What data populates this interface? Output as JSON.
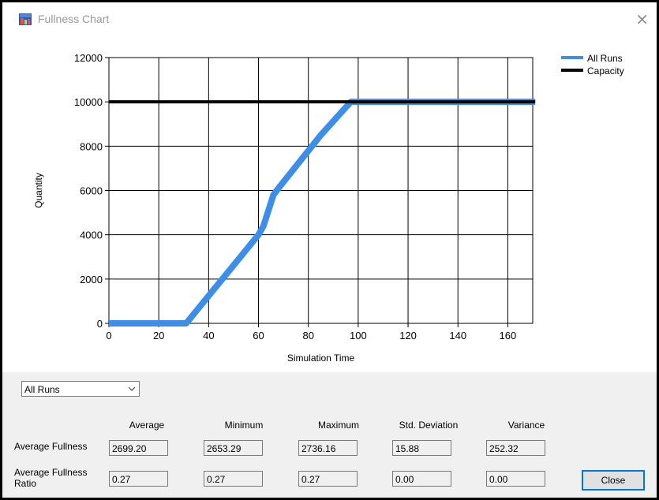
{
  "window": {
    "title": "Fullness Chart",
    "close_glyph": "×"
  },
  "chart_data": {
    "type": "line",
    "xlabel": "Simulation Time",
    "ylabel": "Quantity",
    "xlim": [
      0,
      170
    ],
    "ylim": [
      0,
      12000
    ],
    "x_ticks": [
      "0",
      "20",
      "40",
      "60",
      "80",
      "100",
      "120",
      "140",
      "160"
    ],
    "y_ticks": [
      "0",
      "2000",
      "4000",
      "6000",
      "8000",
      "10000",
      "12000"
    ],
    "grid": true,
    "legend_position": "top-right",
    "series": [
      {
        "name": "All Runs",
        "color": "#3c8ee8",
        "x": [
          0,
          30,
          31,
          60,
          62,
          66,
          68,
          85,
          97,
          100,
          171
        ],
        "y": [
          0,
          0,
          0,
          4000,
          4400,
          5800,
          6100,
          8500,
          10000,
          10000,
          10000
        ]
      },
      {
        "name": "Capacity",
        "color": "#000000",
        "x": [
          0,
          171
        ],
        "y": [
          10000,
          10000
        ]
      }
    ]
  },
  "controls": {
    "run_select_value": "All Runs"
  },
  "stats": {
    "columns": [
      "Average",
      "Minimum",
      "Maximum",
      "Std. Deviation",
      "Variance"
    ],
    "rows": [
      {
        "label": "Average Fullness",
        "values": [
          "2699.20",
          "2653.29",
          "2736.16",
          "15.88",
          "252.32"
        ]
      },
      {
        "label_line1": "Average Fullness",
        "label_line2": "Ratio",
        "values": [
          "0.27",
          "0.27",
          "0.27",
          "0.00",
          "0.00"
        ]
      }
    ]
  },
  "buttons": {
    "close_label": "Close"
  }
}
